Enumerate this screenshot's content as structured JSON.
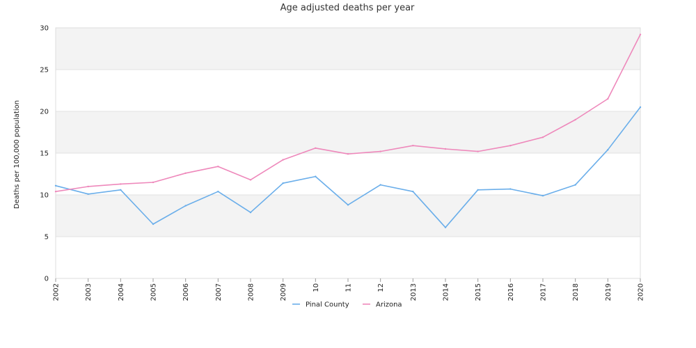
{
  "chart_data": {
    "type": "line",
    "title": "Age adjusted deaths per year",
    "xlabel": "",
    "ylabel": "Deaths per 100,000 population",
    "ylim": [
      0,
      30
    ],
    "yticks": [
      "0",
      "5",
      "10",
      "15",
      "20",
      "25",
      "30"
    ],
    "categories": [
      "2002",
      "2003",
      "2004",
      "2005",
      "2006",
      "2007",
      "2008",
      "2009",
      "10",
      "11",
      "12",
      "2013",
      "2014",
      "2015",
      "2016",
      "2017",
      "2018",
      "2019",
      "2020"
    ],
    "series": [
      {
        "name": "Pinal County",
        "color": "#6aaeea",
        "values": [
          11.1,
          10.1,
          10.6,
          6.5,
          8.7,
          10.4,
          7.9,
          11.4,
          12.2,
          8.8,
          11.2,
          10.4,
          6.1,
          10.6,
          10.7,
          9.9,
          11.2,
          15.4,
          20.5
        ]
      },
      {
        "name": "Arizona",
        "color": "#ee88bb",
        "values": [
          10.4,
          11.0,
          11.3,
          11.5,
          12.6,
          13.4,
          11.8,
          14.2,
          15.6,
          14.9,
          15.2,
          15.9,
          15.5,
          15.2,
          15.9,
          16.9,
          19.0,
          21.5,
          29.2
        ]
      }
    ],
    "grid": true,
    "grid_bands": [
      "#f3f3f3",
      "#ffffff"
    ],
    "legend_position": "bottom-center"
  }
}
